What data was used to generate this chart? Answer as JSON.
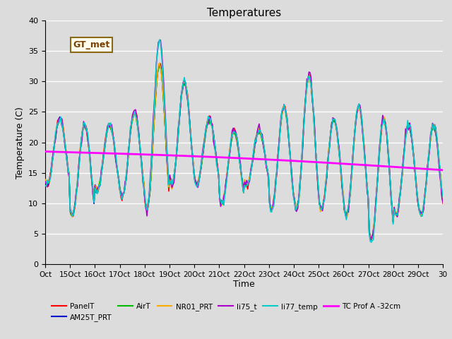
{
  "title": "Temperatures",
  "xlabel": "Time",
  "ylabel": "Temperature (C)",
  "ylim": [
    0,
    40
  ],
  "yticks": [
    0,
    5,
    10,
    15,
    20,
    25,
    30,
    35,
    40
  ],
  "xtick_labels": [
    "Oct",
    "15Oct",
    "16Oct",
    "17Oct",
    "18Oct",
    "19Oct",
    "20Oct",
    "21Oct",
    "22Oct",
    "23Oct",
    "24Oct",
    "25Oct",
    "26Oct",
    "27Oct",
    "28Oct",
    "29Oct",
    "30"
  ],
  "background_color": "#dcdcdc",
  "grid_color": "#ffffff",
  "fig_facecolor": "#dcdcdc",
  "series": {
    "PanelT": {
      "color": "#ff0000",
      "lw": 1.2,
      "zorder": 3
    },
    "AM25T_PRT": {
      "color": "#0000cc",
      "lw": 1.2,
      "zorder": 3
    },
    "AirT": {
      "color": "#00bb00",
      "lw": 1.2,
      "zorder": 3
    },
    "NR01_PRT": {
      "color": "#ffaa00",
      "lw": 1.2,
      "zorder": 3
    },
    "li75_t": {
      "color": "#aa00cc",
      "lw": 1.2,
      "zorder": 3
    },
    "li77_temp": {
      "color": "#00cccc",
      "lw": 1.2,
      "zorder": 3
    },
    "TC Prof A -32cm": {
      "color": "#ff00ff",
      "lw": 2.0,
      "zorder": 4
    }
  },
  "annotation_text": "GT_met",
  "legend_ncol": 6,
  "legend_row2": [
    "TC Prof A -32cm"
  ]
}
